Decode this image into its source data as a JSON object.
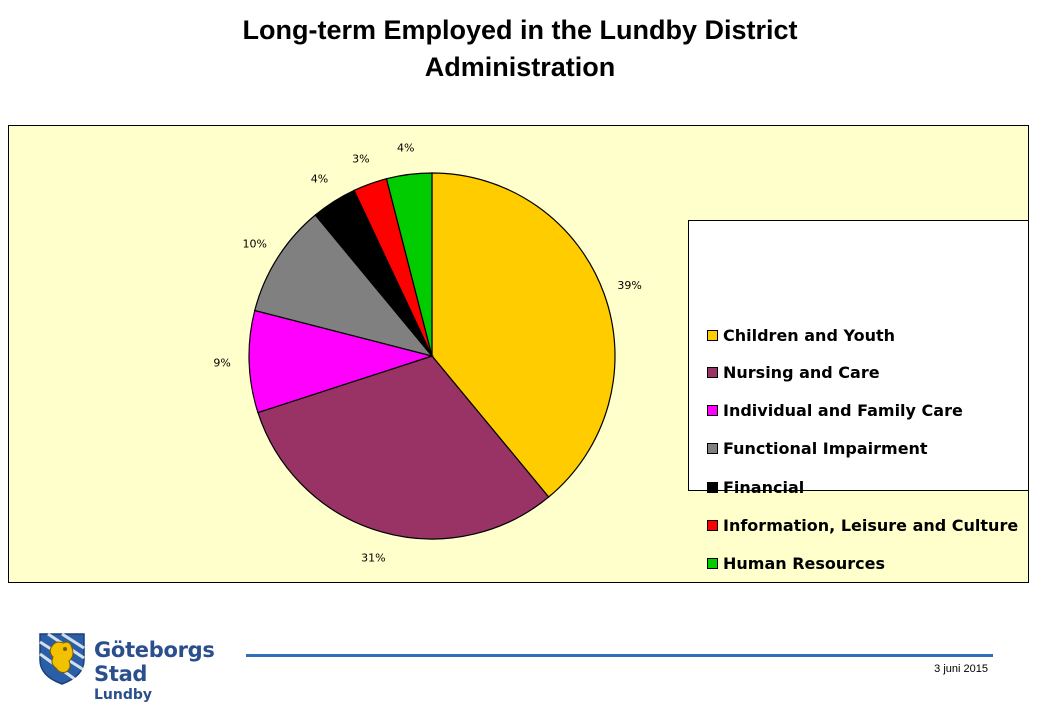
{
  "title_lines": [
    "Long-term Employed in the Lundby District",
    "Administration"
  ],
  "chart_data": {
    "type": "pie",
    "title": "Long-term Employed in the Lundby District Administration",
    "slices": [
      {
        "name": "Children and Youth",
        "value": 39,
        "label": "39%",
        "color": "#ffcc00"
      },
      {
        "name": "Nursing and Care",
        "value": 31,
        "label": "31%",
        "color": "#993366"
      },
      {
        "name": "Individual and Family Care",
        "value": 9,
        "label": "9%",
        "color": "#ff00ff"
      },
      {
        "name": "Functional Impairment",
        "value": 10,
        "label": "10%",
        "color": "#808080"
      },
      {
        "name": "Financial",
        "value": 4,
        "label": "4%",
        "color": "#000000"
      },
      {
        "name": "Information, Leisure and Culture",
        "value": 3,
        "label": "3%",
        "color": "#ff0000"
      },
      {
        "name": "Human Resources",
        "value": 4,
        "label": "4%",
        "color": "#00cc00"
      }
    ],
    "legend_position": "right",
    "background": "#ffffcc"
  },
  "footer": {
    "logo_name": "Göteborgs Stad",
    "logo_sub": "Lundby",
    "date": "3 juni 2015",
    "line_color": "#2f6fb7"
  }
}
